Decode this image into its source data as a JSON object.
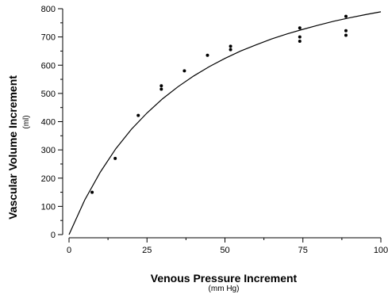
{
  "chart_data": {
    "type": "scatter",
    "title": "",
    "xlabel": "Venous Pressure Increment",
    "xlabel_unit": "(mm Hg)",
    "ylabel": "Vascular Volume Increment",
    "ylabel_unit": "(ml)",
    "xlim": [
      0,
      100
    ],
    "ylim": [
      0,
      800
    ],
    "xticks": [
      0,
      25,
      50,
      75,
      100
    ],
    "yticks": [
      0,
      100,
      200,
      300,
      400,
      500,
      600,
      700,
      800
    ],
    "grid": false,
    "legend": "none",
    "series": [
      {
        "kind": "points",
        "points": [
          [
            7.4,
            150
          ],
          [
            14.8,
            270
          ],
          [
            22.2,
            422
          ],
          [
            29.6,
            515
          ],
          [
            29.6,
            527
          ],
          [
            37.0,
            580
          ],
          [
            44.4,
            635
          ],
          [
            51.8,
            655
          ],
          [
            51.8,
            667
          ],
          [
            74.0,
            685
          ],
          [
            74.0,
            700
          ],
          [
            74.0,
            732
          ],
          [
            88.8,
            706
          ],
          [
            88.8,
            722
          ],
          [
            88.8,
            773
          ]
        ]
      },
      {
        "kind": "fitted-curve",
        "x": [
          0,
          5,
          10,
          15,
          20,
          25,
          30,
          35,
          40,
          45,
          50,
          55,
          60,
          65,
          70,
          75,
          80,
          85,
          90,
          95,
          100
        ],
        "y": [
          0,
          122,
          221,
          304,
          373,
          431,
          481,
          524,
          562,
          595,
          624,
          650,
          672,
          693,
          711,
          727,
          742,
          756,
          768,
          779,
          789
        ]
      }
    ]
  }
}
